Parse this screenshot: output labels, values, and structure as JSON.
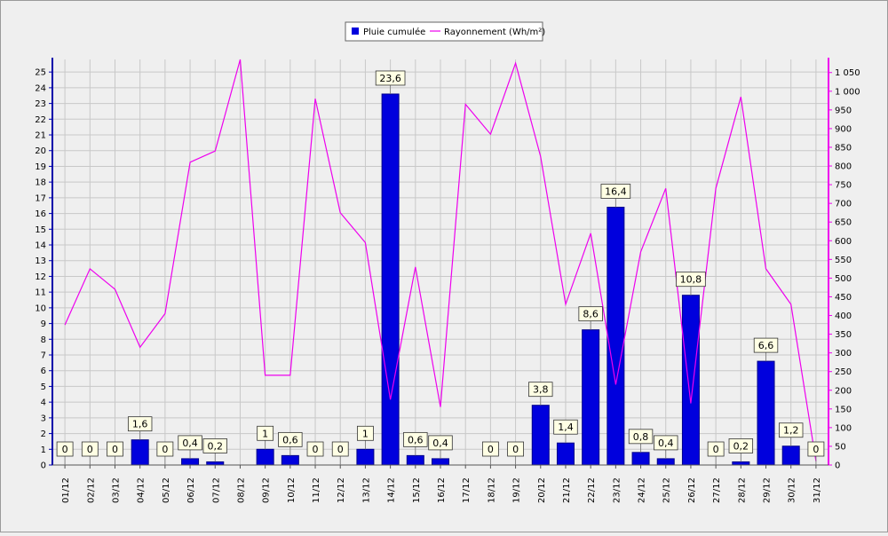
{
  "chart_data": {
    "type": "bar",
    "categories": [
      "01/12",
      "02/12",
      "03/12",
      "04/12",
      "05/12",
      "06/12",
      "07/12",
      "08/12",
      "09/12",
      "10/12",
      "11/12",
      "12/12",
      "13/12",
      "14/12",
      "15/12",
      "16/12",
      "17/12",
      "18/12",
      "19/12",
      "20/12",
      "21/12",
      "22/12",
      "23/12",
      "24/12",
      "25/12",
      "26/12",
      "27/12",
      "28/12",
      "29/12",
      "30/12",
      "31/12"
    ],
    "series": [
      {
        "name": "Pluie cumulée",
        "type": "bar",
        "axis": "left",
        "color": "#0000dd",
        "values": [
          0,
          0,
          0,
          1.6,
          0,
          0.4,
          0.2,
          null,
          1,
          0.6,
          0,
          0,
          1,
          23.6,
          0.6,
          0.4,
          null,
          0,
          0,
          3.8,
          1.4,
          8.6,
          16.4,
          0.8,
          0.4,
          10.8,
          0,
          0.2,
          6.6,
          1.2,
          0
        ],
        "labels": [
          "0",
          "0",
          "0",
          "1,6",
          "0",
          "0,4",
          "0,2",
          "",
          "1",
          "0,6",
          "0",
          "0",
          "1",
          "23,6",
          "0,6",
          "0,4",
          "",
          "0",
          "0",
          "3,8",
          "1,4",
          "8,6",
          "16,4",
          "0,8",
          "0,4",
          "10,8",
          "0",
          "0,2",
          "6,6",
          "1,2",
          "0"
        ]
      },
      {
        "name": "Rayonnement (Wh/m²)",
        "type": "line",
        "axis": "right",
        "color": "#ee00ee",
        "values": [
          375,
          525,
          470,
          315,
          405,
          810,
          840,
          1085,
          240,
          240,
          980,
          675,
          595,
          175,
          530,
          155,
          965,
          885,
          1075,
          825,
          430,
          620,
          215,
          570,
          740,
          165,
          740,
          985,
          525,
          430,
          10
        ]
      }
    ],
    "y_left": {
      "ylim": [
        0,
        25.8
      ],
      "ticks": [
        0,
        1,
        2,
        3,
        4,
        5,
        6,
        7,
        8,
        9,
        10,
        11,
        12,
        13,
        14,
        15,
        16,
        17,
        18,
        19,
        20,
        21,
        22,
        23,
        24,
        25
      ]
    },
    "y_right": {
      "ylim": [
        0,
        1085
      ],
      "ticks": [
        0,
        50,
        100,
        150,
        200,
        250,
        300,
        350,
        400,
        450,
        500,
        550,
        600,
        650,
        700,
        750,
        800,
        850,
        900,
        950,
        1000,
        1050
      ],
      "tick_labels": [
        "0",
        "50",
        "100",
        "150",
        "200",
        "250",
        "300",
        "350",
        "400",
        "450",
        "500",
        "550",
        "600",
        "650",
        "700",
        "750",
        "800",
        "850",
        "900",
        "950",
        "1 000",
        "1 050"
      ]
    },
    "grid": true,
    "legend_position": "top-center"
  }
}
